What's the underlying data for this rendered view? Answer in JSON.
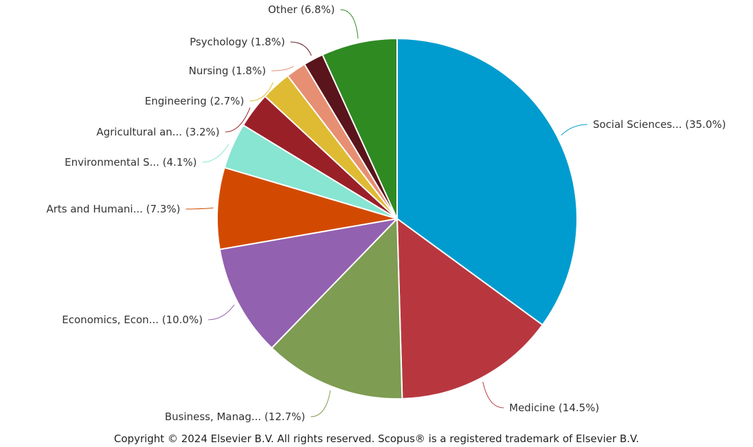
{
  "chart_data": {
    "type": "pie",
    "start_angle_deg": 0,
    "direction": "clockwise",
    "slices": [
      {
        "label": "Social Sciences... (35.0%)",
        "value": 35.0,
        "color": "#009ccf"
      },
      {
        "label": "Medicine (14.5%)",
        "value": 14.5,
        "color": "#b8373f"
      },
      {
        "label": "Business, Manag... (12.7%)",
        "value": 12.7,
        "color": "#7e9c52"
      },
      {
        "label": "Economics, Econ... (10.0%)",
        "value": 10.0,
        "color": "#9261b0"
      },
      {
        "label": "Arts and Humani... (7.3%)",
        "value": 7.3,
        "color": "#d24a01"
      },
      {
        "label": "Environmental S... (4.1%)",
        "value": 4.1,
        "color": "#87e5d1"
      },
      {
        "label": "Agricultural an... (3.2%)",
        "value": 3.2,
        "color": "#9a2028"
      },
      {
        "label": "Engineering (2.7%)",
        "value": 2.7,
        "color": "#dfbb33"
      },
      {
        "label": "Nursing (1.8%)",
        "value": 1.8,
        "color": "#e78f73"
      },
      {
        "label": "Psychology (1.8%)",
        "value": 1.8,
        "color": "#5a141b"
      },
      {
        "label": "Other (6.8%)",
        "value": 6.8,
        "color": "#2f8a22"
      }
    ]
  },
  "footer": {
    "copyright": "Copyright © 2024 Elsevier B.V. All rights reserved. Scopus® is a registered trademark of Elsevier B.V."
  }
}
